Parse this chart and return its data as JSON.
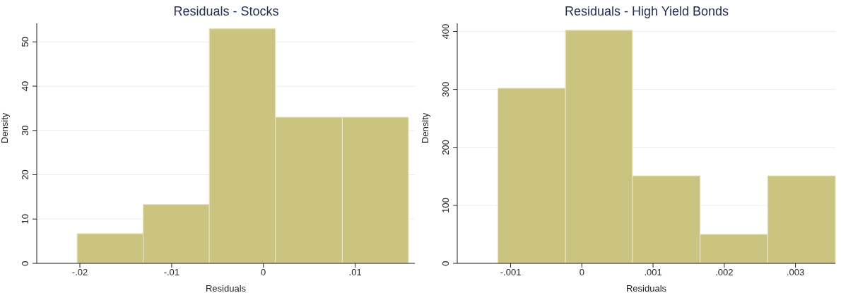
{
  "chart_data": [
    {
      "type": "histogram",
      "title": "Residuals - Stocks",
      "xlabel": "Residuals",
      "ylabel": "Density",
      "color": "#cbc480",
      "grid": "y",
      "bins": [
        -0.0203,
        -0.0131,
        -0.0059,
        0.0013,
        0.0086,
        0.0158
      ],
      "values": [
        6.7,
        13.3,
        53,
        33,
        33
      ],
      "xlim": [
        -0.0247,
        0.0165
      ],
      "xticks": [
        {
          "value": -0.02,
          "label": "-.02"
        },
        {
          "value": -0.01,
          "label": "-.01"
        },
        0,
        {
          "value": 0.01,
          "label": ".01"
        }
      ],
      "ylim": [
        0,
        54.2
      ],
      "yticks": [
        0,
        10,
        20,
        30,
        40,
        50
      ]
    },
    {
      "type": "histogram",
      "title": "Residuals - High Yield Bonds",
      "xlabel": "Residuals",
      "ylabel": "Density",
      "color": "#cbc480",
      "grid": "y",
      "bins": [
        -0.00118,
        -0.00023,
        0.00071,
        0.00166,
        0.00261,
        0.00356
      ],
      "values": [
        302,
        402,
        151,
        50,
        151
      ],
      "xlim": [
        -0.00175,
        0.00356
      ],
      "xticks": [
        {
          "value": -0.001,
          "label": "-.001"
        },
        0,
        {
          "value": 0.001,
          "label": ".001"
        },
        {
          "value": 0.002,
          "label": ".002"
        },
        {
          "value": 0.003,
          "label": ".003"
        }
      ],
      "ylim": [
        0,
        414
      ],
      "yticks": [
        0,
        100,
        200,
        300,
        400
      ]
    }
  ]
}
